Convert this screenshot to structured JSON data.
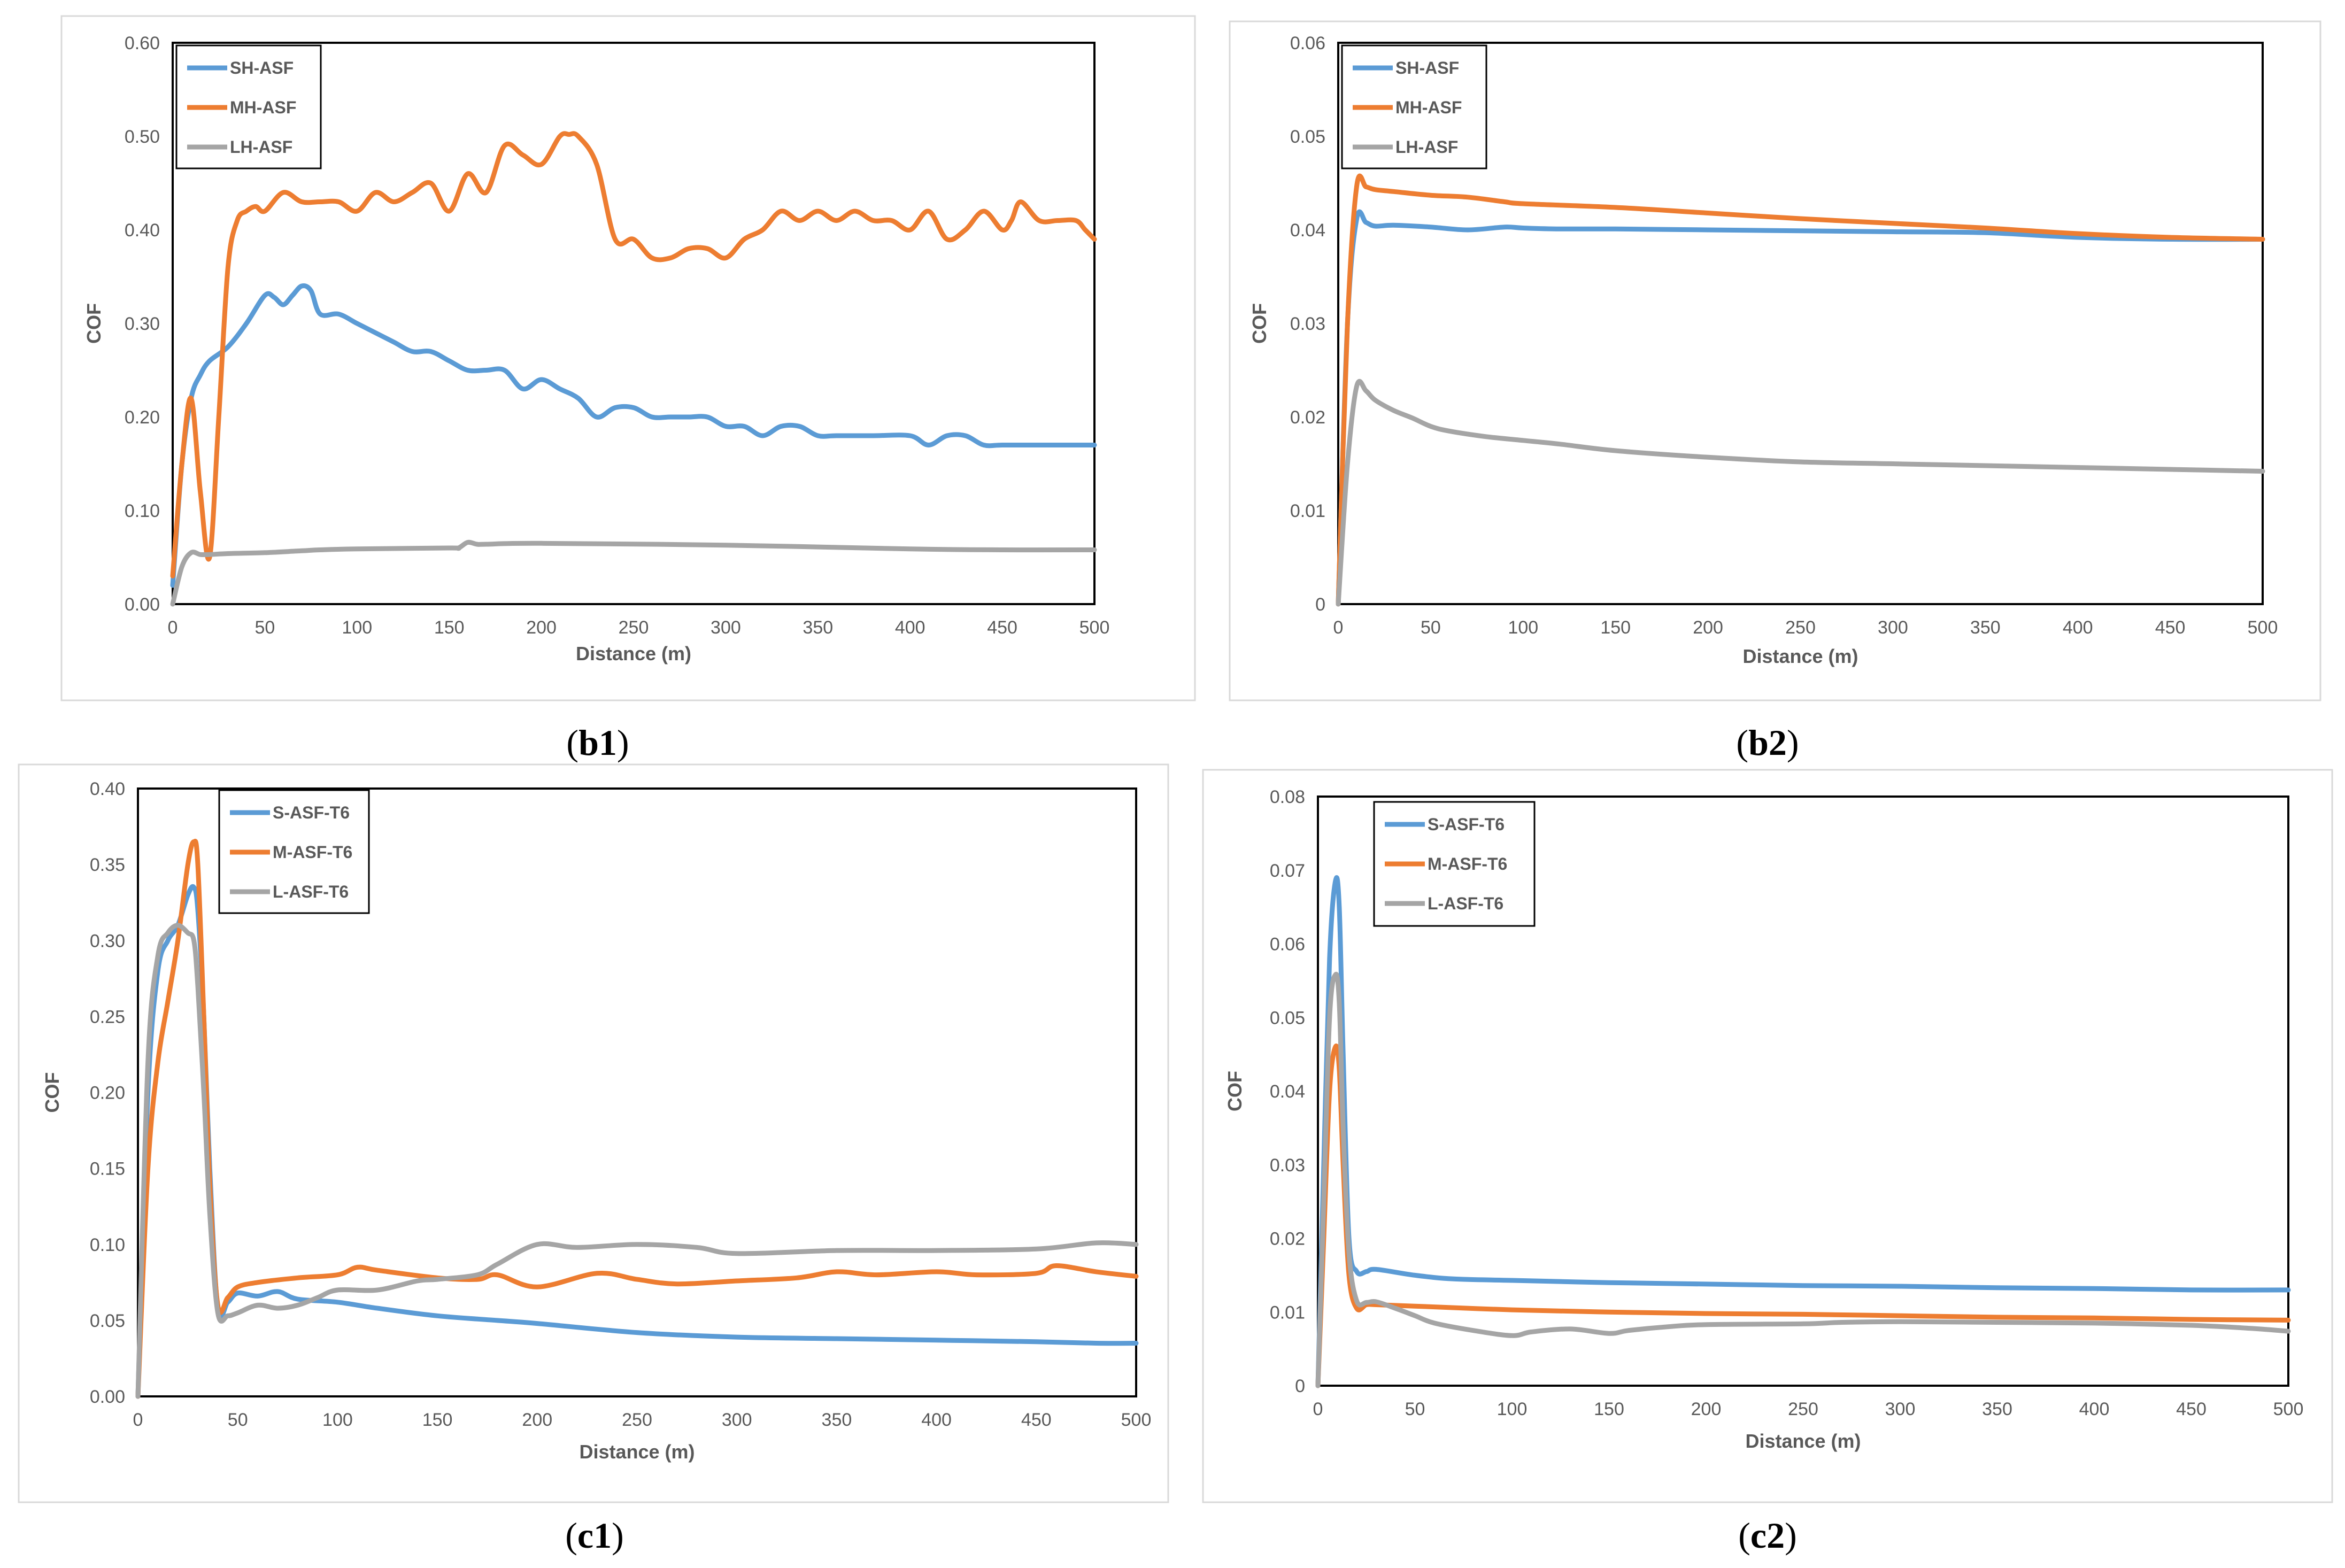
{
  "colors": {
    "series1": "#5b9bd5",
    "series2": "#ed7d31",
    "series3": "#a5a5a5"
  },
  "chart_data": [
    {
      "type": "line",
      "caption": {
        "open": "(",
        "label": "b1",
        "close": ")"
      },
      "xlabel": "Distance (m)",
      "ylabel": "COF",
      "xlim": [
        0,
        500
      ],
      "ylim": [
        0,
        0.6
      ],
      "xticks": [
        "0",
        "50",
        "100",
        "150",
        "200",
        "250",
        "300",
        "350",
        "400",
        "450",
        "500"
      ],
      "yticks": [
        "0.00",
        "0.10",
        "0.20",
        "0.30",
        "0.40",
        "0.50",
        "0.60"
      ],
      "legend": "top-left",
      "series": [
        {
          "name": "SH-ASF",
          "x": [
            0,
            5,
            10,
            15,
            20,
            30,
            40,
            50,
            55,
            60,
            65,
            70,
            75,
            80,
            90,
            100,
            110,
            120,
            130,
            140,
            150,
            160,
            170,
            180,
            190,
            200,
            210,
            220,
            230,
            240,
            250,
            260,
            270,
            280,
            290,
            300,
            310,
            320,
            330,
            340,
            350,
            360,
            380,
            400,
            410,
            420,
            430,
            440,
            450,
            470,
            500
          ],
          "y": [
            0.02,
            0.15,
            0.22,
            0.245,
            0.26,
            0.275,
            0.3,
            0.33,
            0.328,
            0.32,
            0.33,
            0.34,
            0.335,
            0.31,
            0.31,
            0.3,
            0.29,
            0.28,
            0.27,
            0.27,
            0.26,
            0.25,
            0.25,
            0.25,
            0.23,
            0.24,
            0.23,
            0.22,
            0.2,
            0.21,
            0.21,
            0.2,
            0.2,
            0.2,
            0.2,
            0.19,
            0.19,
            0.18,
            0.19,
            0.19,
            0.18,
            0.18,
            0.18,
            0.18,
            0.17,
            0.18,
            0.18,
            0.17,
            0.17,
            0.17,
            0.17
          ]
        },
        {
          "name": "MH-ASF",
          "x": [
            0,
            5,
            10,
            15,
            20,
            25,
            30,
            35,
            40,
            45,
            50,
            60,
            70,
            80,
            90,
            100,
            110,
            120,
            130,
            140,
            150,
            160,
            170,
            180,
            190,
            200,
            210,
            215,
            220,
            230,
            240,
            250,
            260,
            270,
            280,
            290,
            300,
            310,
            320,
            330,
            340,
            350,
            360,
            370,
            380,
            390,
            400,
            410,
            420,
            430,
            440,
            450,
            455,
            460,
            470,
            480,
            490,
            495,
            500
          ],
          "y": [
            0.03,
            0.15,
            0.22,
            0.12,
            0.05,
            0.2,
            0.36,
            0.41,
            0.42,
            0.425,
            0.42,
            0.44,
            0.43,
            0.43,
            0.43,
            0.42,
            0.44,
            0.43,
            0.44,
            0.45,
            0.42,
            0.46,
            0.44,
            0.49,
            0.48,
            0.47,
            0.5,
            0.502,
            0.5,
            0.47,
            0.39,
            0.39,
            0.37,
            0.37,
            0.38,
            0.38,
            0.37,
            0.39,
            0.4,
            0.42,
            0.41,
            0.42,
            0.41,
            0.42,
            0.41,
            0.41,
            0.4,
            0.42,
            0.39,
            0.4,
            0.42,
            0.4,
            0.41,
            0.43,
            0.41,
            0.41,
            0.41,
            0.4,
            0.39
          ]
        },
        {
          "name": "LH-ASF",
          "x": [
            0,
            5,
            10,
            15,
            20,
            30,
            50,
            70,
            80,
            100,
            150,
            155,
            160,
            165,
            170,
            200,
            300,
            400,
            450,
            500
          ],
          "y": [
            0.0,
            0.04,
            0.055,
            0.053,
            0.053,
            0.054,
            0.055,
            0.057,
            0.058,
            0.059,
            0.06,
            0.06,
            0.066,
            0.064,
            0.064,
            0.065,
            0.063,
            0.059,
            0.058,
            0.058
          ]
        }
      ]
    },
    {
      "type": "line",
      "caption": {
        "open": "(",
        "label": "b2",
        "close": ")"
      },
      "xlabel": "Distance (m)",
      "ylabel": "COF",
      "xlim": [
        0,
        500
      ],
      "ylim": [
        0,
        0.06
      ],
      "xticks": [
        "0",
        "50",
        "100",
        "150",
        "200",
        "250",
        "300",
        "350",
        "400",
        "450",
        "500"
      ],
      "yticks": [
        "0",
        "0.01",
        "0.02",
        "0.03",
        "0.04",
        "0.05",
        "0.06"
      ],
      "legend": "top-left",
      "series": [
        {
          "name": "SH-ASF",
          "x": [
            0,
            5,
            10,
            15,
            20,
            30,
            50,
            70,
            90,
            100,
            120,
            150,
            200,
            250,
            300,
            350,
            400,
            450,
            500
          ],
          "y": [
            0.0,
            0.03,
            0.0412,
            0.0408,
            0.0404,
            0.0405,
            0.0403,
            0.04,
            0.0403,
            0.0402,
            0.0401,
            0.0401,
            0.04,
            0.0399,
            0.0398,
            0.0397,
            0.0392,
            0.039,
            0.039
          ]
        },
        {
          "name": "MH-ASF",
          "x": [
            0,
            5,
            10,
            15,
            20,
            30,
            50,
            70,
            90,
            100,
            150,
            200,
            250,
            300,
            350,
            400,
            450,
            500
          ],
          "y": [
            0.0,
            0.03,
            0.0447,
            0.0446,
            0.0443,
            0.0441,
            0.0437,
            0.0435,
            0.043,
            0.0428,
            0.0424,
            0.0418,
            0.0412,
            0.0407,
            0.0402,
            0.0396,
            0.0392,
            0.039
          ]
        },
        {
          "name": "LH-ASF",
          "x": [
            0,
            5,
            10,
            15,
            20,
            30,
            40,
            50,
            60,
            80,
            100,
            120,
            150,
            200,
            250,
            300,
            350,
            400,
            450,
            500
          ],
          "y": [
            0.0,
            0.015,
            0.0233,
            0.0228,
            0.0218,
            0.0207,
            0.0199,
            0.019,
            0.0185,
            0.0179,
            0.0175,
            0.0171,
            0.0164,
            0.0157,
            0.0152,
            0.015,
            0.0148,
            0.0146,
            0.0144,
            0.0142
          ]
        }
      ]
    },
    {
      "type": "line",
      "caption": {
        "open": "(",
        "label": "c1",
        "close": ")"
      },
      "xlabel": "Distance (m)",
      "ylabel": "COF",
      "xlim": [
        0,
        500
      ],
      "ylim": [
        0,
        0.4
      ],
      "xticks": [
        "0",
        "50",
        "100",
        "150",
        "200",
        "250",
        "300",
        "350",
        "400",
        "450",
        "500"
      ],
      "yticks": [
        "0.00",
        "0.05",
        "0.10",
        "0.15",
        "0.20",
        "0.25",
        "0.30",
        "0.35",
        "0.40"
      ],
      "legend": "top-center",
      "series": [
        {
          "name": "S-ASF-T6",
          "x": [
            0,
            5,
            10,
            15,
            20,
            25,
            28,
            30,
            33,
            36,
            40,
            45,
            50,
            60,
            70,
            80,
            100,
            120,
            150,
            180,
            200,
            250,
            300,
            350,
            400,
            450,
            480,
            500
          ],
          "y": [
            0.0,
            0.2,
            0.28,
            0.3,
            0.31,
            0.33,
            0.335,
            0.32,
            0.25,
            0.15,
            0.058,
            0.062,
            0.068,
            0.066,
            0.069,
            0.064,
            0.062,
            0.058,
            0.053,
            0.05,
            0.048,
            0.042,
            0.039,
            0.038,
            0.037,
            0.036,
            0.035,
            0.035
          ]
        },
        {
          "name": "M-ASF-T6",
          "x": [
            0,
            5,
            10,
            15,
            20,
            25,
            28,
            30,
            33,
            36,
            40,
            45,
            50,
            60,
            80,
            100,
            110,
            120,
            150,
            170,
            180,
            200,
            230,
            250,
            270,
            300,
            330,
            350,
            370,
            400,
            420,
            450,
            460,
            480,
            500
          ],
          "y": [
            0.0,
            0.15,
            0.22,
            0.26,
            0.3,
            0.35,
            0.365,
            0.35,
            0.25,
            0.14,
            0.06,
            0.065,
            0.072,
            0.075,
            0.078,
            0.08,
            0.085,
            0.083,
            0.078,
            0.077,
            0.08,
            0.072,
            0.081,
            0.077,
            0.074,
            0.076,
            0.078,
            0.082,
            0.08,
            0.082,
            0.08,
            0.081,
            0.086,
            0.082,
            0.079
          ]
        },
        {
          "name": "L-ASF-T6",
          "x": [
            0,
            5,
            10,
            15,
            20,
            25,
            28,
            30,
            33,
            36,
            40,
            45,
            50,
            60,
            70,
            80,
            90,
            100,
            120,
            140,
            150,
            170,
            180,
            200,
            220,
            250,
            280,
            300,
            350,
            400,
            450,
            480,
            500
          ],
          "y": [
            0.0,
            0.22,
            0.29,
            0.305,
            0.31,
            0.305,
            0.3,
            0.27,
            0.2,
            0.12,
            0.055,
            0.053,
            0.055,
            0.06,
            0.058,
            0.06,
            0.065,
            0.07,
            0.07,
            0.076,
            0.077,
            0.08,
            0.087,
            0.1,
            0.098,
            0.1,
            0.098,
            0.094,
            0.096,
            0.096,
            0.097,
            0.101,
            0.1
          ]
        }
      ]
    },
    {
      "type": "line",
      "caption": {
        "open": "(",
        "label": "c2",
        "close": ")"
      },
      "xlabel": "Distance (m)",
      "ylabel": "COF",
      "xlim": [
        0,
        500
      ],
      "ylim": [
        0,
        0.08
      ],
      "xticks": [
        "0",
        "50",
        "100",
        "150",
        "200",
        "250",
        "300",
        "350",
        "400",
        "450",
        "500"
      ],
      "yticks": [
        "0",
        "0.01",
        "0.02",
        "0.03",
        "0.04",
        "0.05",
        "0.06",
        "0.07",
        "0.08"
      ],
      "legend": "top-left",
      "series": [
        {
          "name": "S-ASF-T6",
          "x": [
            0,
            3,
            6,
            9,
            11,
            13,
            16,
            20,
            25,
            30,
            50,
            70,
            100,
            150,
            200,
            250,
            300,
            350,
            400,
            450,
            500
          ],
          "y": [
            0.0,
            0.03,
            0.058,
            0.0685,
            0.065,
            0.045,
            0.02,
            0.0155,
            0.0155,
            0.0158,
            0.015,
            0.0145,
            0.0143,
            0.014,
            0.0138,
            0.0136,
            0.0135,
            0.0133,
            0.0132,
            0.013,
            0.013
          ]
        },
        {
          "name": "M-ASF-T6",
          "x": [
            0,
            3,
            6,
            9,
            11,
            13,
            16,
            20,
            25,
            30,
            50,
            100,
            150,
            200,
            250,
            300,
            350,
            400,
            450,
            500
          ],
          "y": [
            0.0,
            0.02,
            0.04,
            0.046,
            0.043,
            0.03,
            0.015,
            0.0105,
            0.011,
            0.011,
            0.0108,
            0.0103,
            0.01,
            0.0098,
            0.0097,
            0.0095,
            0.0093,
            0.0092,
            0.009,
            0.0089
          ]
        },
        {
          "name": "L-ASF-T6",
          "x": [
            0,
            3,
            6,
            9,
            11,
            13,
            16,
            20,
            25,
            30,
            40,
            50,
            60,
            80,
            100,
            110,
            130,
            150,
            160,
            180,
            200,
            250,
            270,
            300,
            350,
            400,
            450,
            480,
            500
          ],
          "y": [
            0.0,
            0.025,
            0.05,
            0.0558,
            0.052,
            0.035,
            0.018,
            0.0115,
            0.0113,
            0.0114,
            0.0105,
            0.0095,
            0.0085,
            0.0075,
            0.0068,
            0.0073,
            0.0077,
            0.0071,
            0.0075,
            0.008,
            0.0083,
            0.0084,
            0.0086,
            0.0087,
            0.0086,
            0.0085,
            0.0082,
            0.0078,
            0.0074
          ]
        }
      ]
    }
  ]
}
